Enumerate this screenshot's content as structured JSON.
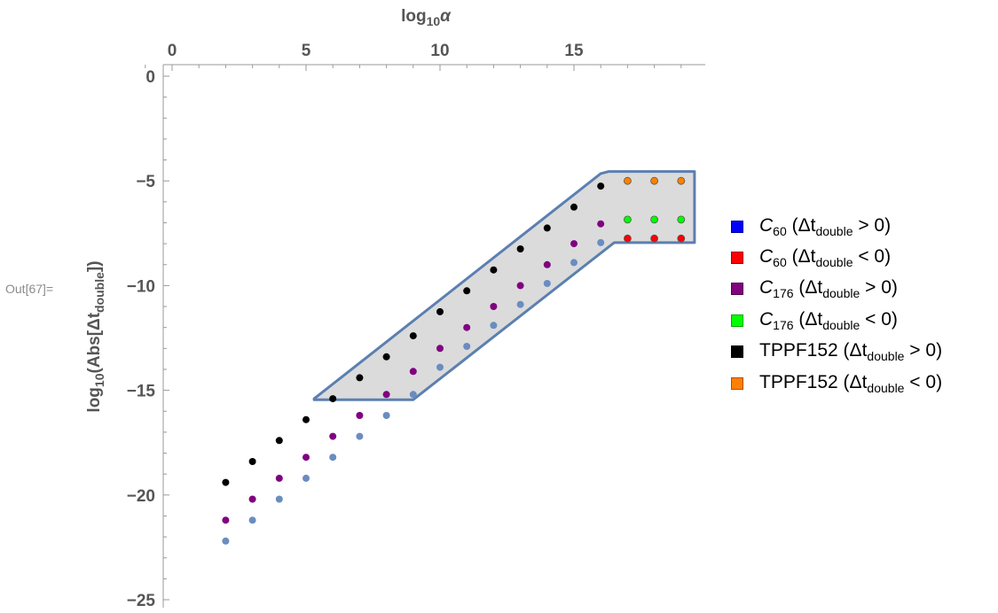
{
  "output_label": "Out[67]=",
  "chart_data": {
    "type": "scatter",
    "xlabel": "log₁₀α",
    "ylabel": "log₁₀(Abs[Δt_double])",
    "x_axis_position": "top",
    "xlim": [
      -1,
      19.5
    ],
    "ylim": [
      -25.5,
      0.6
    ],
    "x_ticks": [
      0,
      5,
      10,
      15
    ],
    "y_ticks": [
      0,
      -5,
      -10,
      -15,
      -20,
      -25
    ],
    "grid": false,
    "legend_position": "right",
    "legend": [
      {
        "name_main": "C",
        "name_sub": "60",
        "italic": true,
        "cond": "Δt",
        "cond_sub": "double",
        "sign": " > 0)",
        "color": "#0000ff"
      },
      {
        "name_main": "C",
        "name_sub": "60",
        "italic": true,
        "cond": "Δt",
        "cond_sub": "double",
        "sign": " < 0)",
        "color": "#ff0000"
      },
      {
        "name_main": "C",
        "name_sub": "176",
        "italic": true,
        "cond": "Δt",
        "cond_sub": "double",
        "sign": " > 0)",
        "color": "#800080"
      },
      {
        "name_main": "C",
        "name_sub": "176",
        "italic": true,
        "cond": "Δt",
        "cond_sub": "double",
        "sign": " < 0)",
        "color": "#00ff00"
      },
      {
        "name_main": "TPPF152",
        "name_sub": "",
        "italic": false,
        "cond": "Δt",
        "cond_sub": "double",
        "sign": " > 0)",
        "color": "#000000"
      },
      {
        "name_main": "TPPF152",
        "name_sub": "",
        "italic": false,
        "cond": "Δt",
        "cond_sub": "double",
        "sign": " < 0)",
        "color": "#ff8000"
      }
    ],
    "region": {
      "fill": "#d9d9d9",
      "stroke": "#5b7fb0",
      "vertices": [
        [
          5.3,
          -15.4
        ],
        [
          16.0,
          -4.65
        ],
        [
          16.3,
          -4.55
        ],
        [
          19.5,
          -4.55
        ],
        [
          19.5,
          -7.95
        ],
        [
          16.5,
          -7.95
        ],
        [
          9.0,
          -15.45
        ],
        [
          5.3,
          -15.45
        ]
      ]
    },
    "series": [
      {
        "style": "blue-gray",
        "color": "#6a8cc0",
        "edge": "none",
        "points": [
          [
            2,
            -22.2
          ],
          [
            3,
            -21.2
          ],
          [
            4,
            -20.2
          ],
          [
            5,
            -19.2
          ],
          [
            6,
            -18.2
          ],
          [
            7,
            -17.2
          ],
          [
            8,
            -16.2
          ],
          [
            9,
            -15.2
          ],
          [
            10,
            -13.9
          ],
          [
            11,
            -12.9
          ],
          [
            12,
            -11.9
          ],
          [
            13,
            -10.9
          ],
          [
            14,
            -9.9
          ],
          [
            15,
            -8.9
          ],
          [
            16,
            -7.95
          ]
        ]
      },
      {
        "style": "purple",
        "color": "#800080",
        "edge": "none",
        "points": [
          [
            2,
            -21.2
          ],
          [
            3,
            -20.2
          ],
          [
            4,
            -19.2
          ],
          [
            5,
            -18.2
          ],
          [
            6,
            -17.2
          ],
          [
            7,
            -16.2
          ],
          [
            8,
            -15.2
          ],
          [
            9,
            -14.1
          ],
          [
            10,
            -13.0
          ],
          [
            11,
            -12.0
          ],
          [
            12,
            -11.0
          ],
          [
            13,
            -10.0
          ],
          [
            14,
            -9.0
          ],
          [
            15,
            -8.0
          ],
          [
            16,
            -7.05
          ]
        ]
      },
      {
        "style": "black",
        "color": "#000000",
        "edge": "none",
        "points": [
          [
            2,
            -19.4
          ],
          [
            3,
            -18.4
          ],
          [
            4,
            -17.4
          ],
          [
            5,
            -16.4
          ],
          [
            6,
            -15.4
          ],
          [
            7,
            -14.4
          ],
          [
            8,
            -13.4
          ],
          [
            9,
            -12.4
          ],
          [
            10,
            -11.25
          ],
          [
            11,
            -10.25
          ],
          [
            12,
            -9.25
          ],
          [
            13,
            -8.25
          ],
          [
            14,
            -7.25
          ],
          [
            15,
            -6.25
          ],
          [
            16,
            -5.25
          ]
        ]
      },
      {
        "style": "red",
        "color": "#ff0000",
        "edge": "#555555",
        "points": [
          [
            17,
            -7.75
          ],
          [
            18,
            -7.75
          ],
          [
            19,
            -7.75
          ]
        ]
      },
      {
        "style": "green",
        "color": "#00ff00",
        "edge": "#555555",
        "points": [
          [
            17,
            -6.85
          ],
          [
            18,
            -6.85
          ],
          [
            19,
            -6.85
          ]
        ]
      },
      {
        "style": "orange",
        "color": "#ff8000",
        "edge": "#555555",
        "points": [
          [
            17,
            -5.0
          ],
          [
            18,
            -5.0
          ],
          [
            19,
            -5.0
          ]
        ]
      }
    ]
  }
}
